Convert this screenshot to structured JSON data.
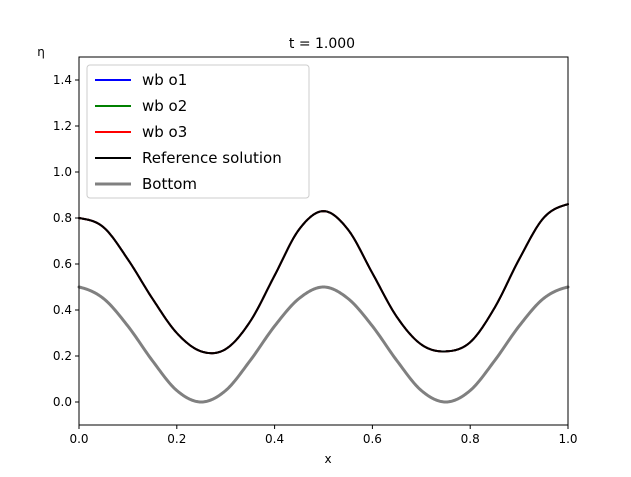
{
  "chart_data": {
    "type": "line",
    "title": "t = 1.000",
    "xlabel": "x",
    "ylabel": "η",
    "xlim": [
      0.0,
      1.0
    ],
    "ylim": [
      -0.1,
      1.5
    ],
    "xticks": [
      "0.0",
      "0.2",
      "0.4",
      "0.6",
      "0.8",
      "1.0"
    ],
    "yticks": [
      "0.0",
      "0.2",
      "0.4",
      "0.6",
      "0.8",
      "1.0",
      "1.2",
      "1.4"
    ],
    "grid": false,
    "legend_position": "top-left",
    "x": [
      0.0,
      0.05,
      0.1,
      0.15,
      0.2,
      0.25,
      0.3,
      0.35,
      0.4,
      0.45,
      0.5,
      0.55,
      0.6,
      0.65,
      0.7,
      0.75,
      0.8,
      0.85,
      0.9,
      0.95,
      1.0
    ],
    "series": [
      {
        "name": "wb o1",
        "color": "#0000ff",
        "width": 2,
        "values": [
          0.8,
          0.76,
          0.62,
          0.45,
          0.3,
          0.22,
          0.23,
          0.35,
          0.55,
          0.75,
          0.83,
          0.75,
          0.56,
          0.37,
          0.25,
          0.22,
          0.26,
          0.41,
          0.62,
          0.8,
          0.86
        ]
      },
      {
        "name": "wb o2",
        "color": "#008000",
        "width": 2,
        "values": [
          0.8,
          0.76,
          0.62,
          0.45,
          0.3,
          0.22,
          0.23,
          0.35,
          0.55,
          0.75,
          0.83,
          0.75,
          0.56,
          0.37,
          0.25,
          0.22,
          0.26,
          0.41,
          0.62,
          0.8,
          0.86
        ]
      },
      {
        "name": "wb o3",
        "color": "#ff0000",
        "width": 2,
        "values": [
          0.8,
          0.76,
          0.62,
          0.45,
          0.3,
          0.22,
          0.23,
          0.35,
          0.55,
          0.75,
          0.83,
          0.75,
          0.56,
          0.37,
          0.25,
          0.22,
          0.26,
          0.41,
          0.62,
          0.8,
          0.86
        ]
      },
      {
        "name": "Reference solution",
        "color": "#000000",
        "width": 2,
        "values": [
          0.8,
          0.76,
          0.62,
          0.45,
          0.3,
          0.22,
          0.23,
          0.35,
          0.55,
          0.75,
          0.83,
          0.75,
          0.56,
          0.37,
          0.25,
          0.22,
          0.26,
          0.41,
          0.62,
          0.8,
          0.86
        ]
      },
      {
        "name": "Bottom",
        "color": "#808080",
        "width": 3,
        "values": [
          0.5,
          0.45,
          0.33,
          0.18,
          0.05,
          0.0,
          0.05,
          0.18,
          0.33,
          0.45,
          0.5,
          0.45,
          0.33,
          0.18,
          0.05,
          0.0,
          0.05,
          0.18,
          0.33,
          0.45,
          0.5
        ]
      }
    ]
  }
}
